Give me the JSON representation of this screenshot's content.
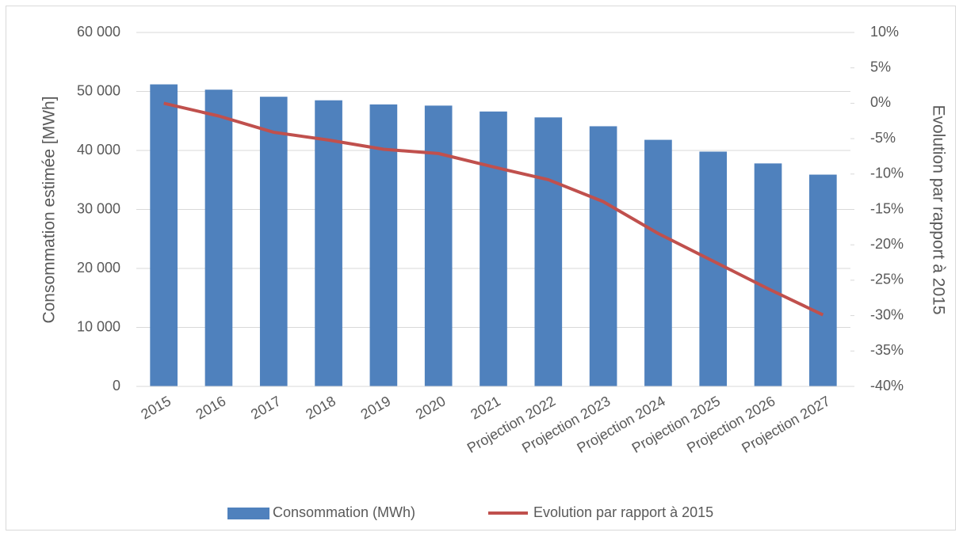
{
  "chart_data": {
    "type": "bar",
    "y_label": "Consommation estimée [MWh]",
    "y2_label": "Evolution par rapport à 2015",
    "categories": [
      "2015",
      "2016",
      "2017",
      "2018",
      "2019",
      "2020",
      "2021",
      "Projection 2022",
      "Projection 2023",
      "Projection 2024",
      "Projection 2025",
      "Projection 2026",
      "Projection 2027"
    ],
    "series": [
      {
        "name": "Consommation (MWh)",
        "type": "bar",
        "color": "#4f81bd",
        "axis": "y",
        "values": [
          51200,
          50300,
          49100,
          48500,
          47800,
          47600,
          46600,
          45600,
          44100,
          41800,
          39800,
          37800,
          35900
        ]
      },
      {
        "name": "Evolution par rapport à 2015",
        "type": "line",
        "color": "#c0504d",
        "axis": "y2",
        "values": [
          0,
          -1.8,
          -4.1,
          -5.2,
          -6.5,
          -7.1,
          -9.0,
          -10.8,
          -13.9,
          -18.4,
          -22.3,
          -26.2,
          -29.9
        ]
      }
    ],
    "ylim": [
      0,
      60000
    ],
    "yticks": [
      0,
      {
        "value": 10000,
        "label": "10 000"
      },
      {
        "value": 20000,
        "label": "20 000"
      },
      {
        "value": 30000,
        "label": "30 000"
      },
      {
        "value": 40000,
        "label": "40 000"
      },
      {
        "value": 50000,
        "label": "50 000"
      },
      {
        "value": 60000,
        "label": "60 000"
      }
    ],
    "y2lim": [
      -40,
      10
    ],
    "y2ticks": [
      {
        "value": -40,
        "label": "-40%"
      },
      {
        "value": -35,
        "label": "-35%"
      },
      {
        "value": -30,
        "label": "-30%"
      },
      {
        "value": -25,
        "label": "-25%"
      },
      {
        "value": -20,
        "label": "-20%"
      },
      {
        "value": -15,
        "label": "-15%"
      },
      {
        "value": -10,
        "label": "-10%"
      },
      {
        "value": -5,
        "label": "-5%"
      },
      {
        "value": 0,
        "label": "0%"
      },
      {
        "value": 5,
        "label": "5%"
      },
      {
        "value": 10,
        "label": "10%"
      }
    ],
    "grid": true,
    "legend": "bottom"
  }
}
